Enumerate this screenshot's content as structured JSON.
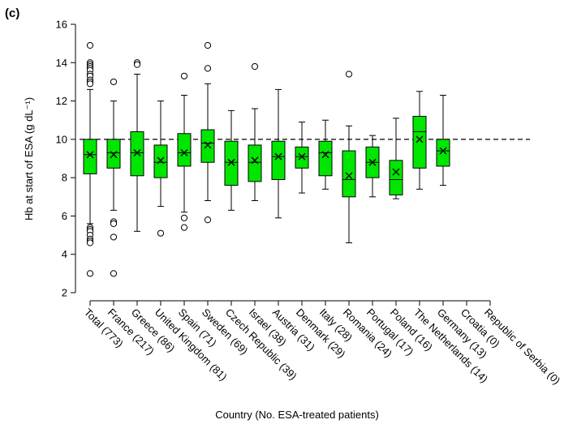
{
  "chart_data": {
    "type": "boxplot",
    "panel_label": "(c)",
    "ylabel": "Hb at start of ESA (g dL⁻¹)",
    "xlabel": "Country (No. ESA-treated patients)",
    "ylim": [
      2,
      16
    ],
    "yticks": [
      2,
      4,
      6,
      8,
      10,
      12,
      14,
      16
    ],
    "reference_line": 10,
    "box_color": "#00e600",
    "categories": [
      "Total (773)",
      "France (217)",
      "Greece (86)",
      "United Kingdom (81)",
      "Spain (71)",
      "Sweden (69)",
      "Czech Republic (39)",
      "Israel (38)",
      "Austria (31)",
      "Denmark (29)",
      "Italy (28)",
      "Romania (24)",
      "Portugal (17)",
      "Poland (16)",
      "The Netherlands (14)",
      "Germany (13)",
      "Croatia (0)",
      "Republic of Serbia (0)"
    ],
    "boxes": [
      {
        "q1": 8.2,
        "median": 9.2,
        "q3": 10.0,
        "whisker_low": 5.6,
        "whisker_high": 12.6,
        "mean": 9.2,
        "outliers": [
          14.9,
          14.0,
          13.9,
          13.8,
          13.7,
          13.6,
          13.4,
          13.3,
          13.1,
          13.0,
          12.9,
          5.4,
          5.3,
          5.2,
          5.0,
          4.8,
          4.7,
          4.6,
          3.0
        ]
      },
      {
        "q1": 8.5,
        "median": 9.3,
        "q3": 10.0,
        "whisker_low": 6.3,
        "whisker_high": 12.0,
        "mean": 9.2,
        "outliers": [
          13.0,
          5.7,
          5.6,
          4.9,
          3.0
        ]
      },
      {
        "q1": 8.1,
        "median": 9.3,
        "q3": 10.4,
        "whisker_low": 5.2,
        "whisker_high": 13.4,
        "mean": 9.3,
        "outliers": [
          14.0,
          13.9
        ]
      },
      {
        "q1": 8.0,
        "median": 8.8,
        "q3": 9.7,
        "whisker_low": 6.5,
        "whisker_high": 12.0,
        "mean": 8.9,
        "outliers": [
          5.1
        ]
      },
      {
        "q1": 8.6,
        "median": 9.3,
        "q3": 10.3,
        "whisker_low": 6.2,
        "whisker_high": 12.3,
        "mean": 9.3,
        "outliers": [
          13.3,
          5.9,
          5.4
        ]
      },
      {
        "q1": 8.8,
        "median": 9.8,
        "q3": 10.5,
        "whisker_low": 6.8,
        "whisker_high": 12.9,
        "mean": 9.7,
        "outliers": [
          14.9,
          13.7,
          5.8
        ]
      },
      {
        "q1": 7.6,
        "median": 8.8,
        "q3": 9.9,
        "whisker_low": 6.3,
        "whisker_high": 11.5,
        "mean": 8.8,
        "outliers": []
      },
      {
        "q1": 7.8,
        "median": 8.8,
        "q3": 9.7,
        "whisker_low": 6.8,
        "whisker_high": 11.6,
        "mean": 8.9,
        "outliers": [
          13.8
        ]
      },
      {
        "q1": 7.9,
        "median": 9.1,
        "q3": 9.9,
        "whisker_low": 5.9,
        "whisker_high": 12.6,
        "mean": 9.1,
        "outliers": []
      },
      {
        "q1": 8.5,
        "median": 9.1,
        "q3": 9.6,
        "whisker_low": 7.2,
        "whisker_high": 10.9,
        "mean": 9.1,
        "outliers": []
      },
      {
        "q1": 8.1,
        "median": 9.3,
        "q3": 9.9,
        "whisker_low": 7.4,
        "whisker_high": 11.0,
        "mean": 9.2,
        "outliers": []
      },
      {
        "q1": 7.0,
        "median": 7.9,
        "q3": 9.4,
        "whisker_low": 4.6,
        "whisker_high": 10.7,
        "mean": 8.1,
        "outliers": [
          13.4
        ]
      },
      {
        "q1": 8.0,
        "median": 8.8,
        "q3": 9.6,
        "whisker_low": 7.0,
        "whisker_high": 10.2,
        "mean": 8.8,
        "outliers": []
      },
      {
        "q1": 7.1,
        "median": 7.9,
        "q3": 8.9,
        "whisker_low": 6.9,
        "whisker_high": 11.1,
        "mean": 8.3,
        "outliers": []
      },
      {
        "q1": 8.5,
        "median": 10.4,
        "q3": 11.2,
        "whisker_low": 7.4,
        "whisker_high": 12.5,
        "mean": 10.0,
        "outliers": []
      },
      {
        "q1": 8.6,
        "median": 9.4,
        "q3": 10.0,
        "whisker_low": 7.6,
        "whisker_high": 12.3,
        "mean": 9.4,
        "outliers": []
      },
      null,
      null
    ]
  }
}
